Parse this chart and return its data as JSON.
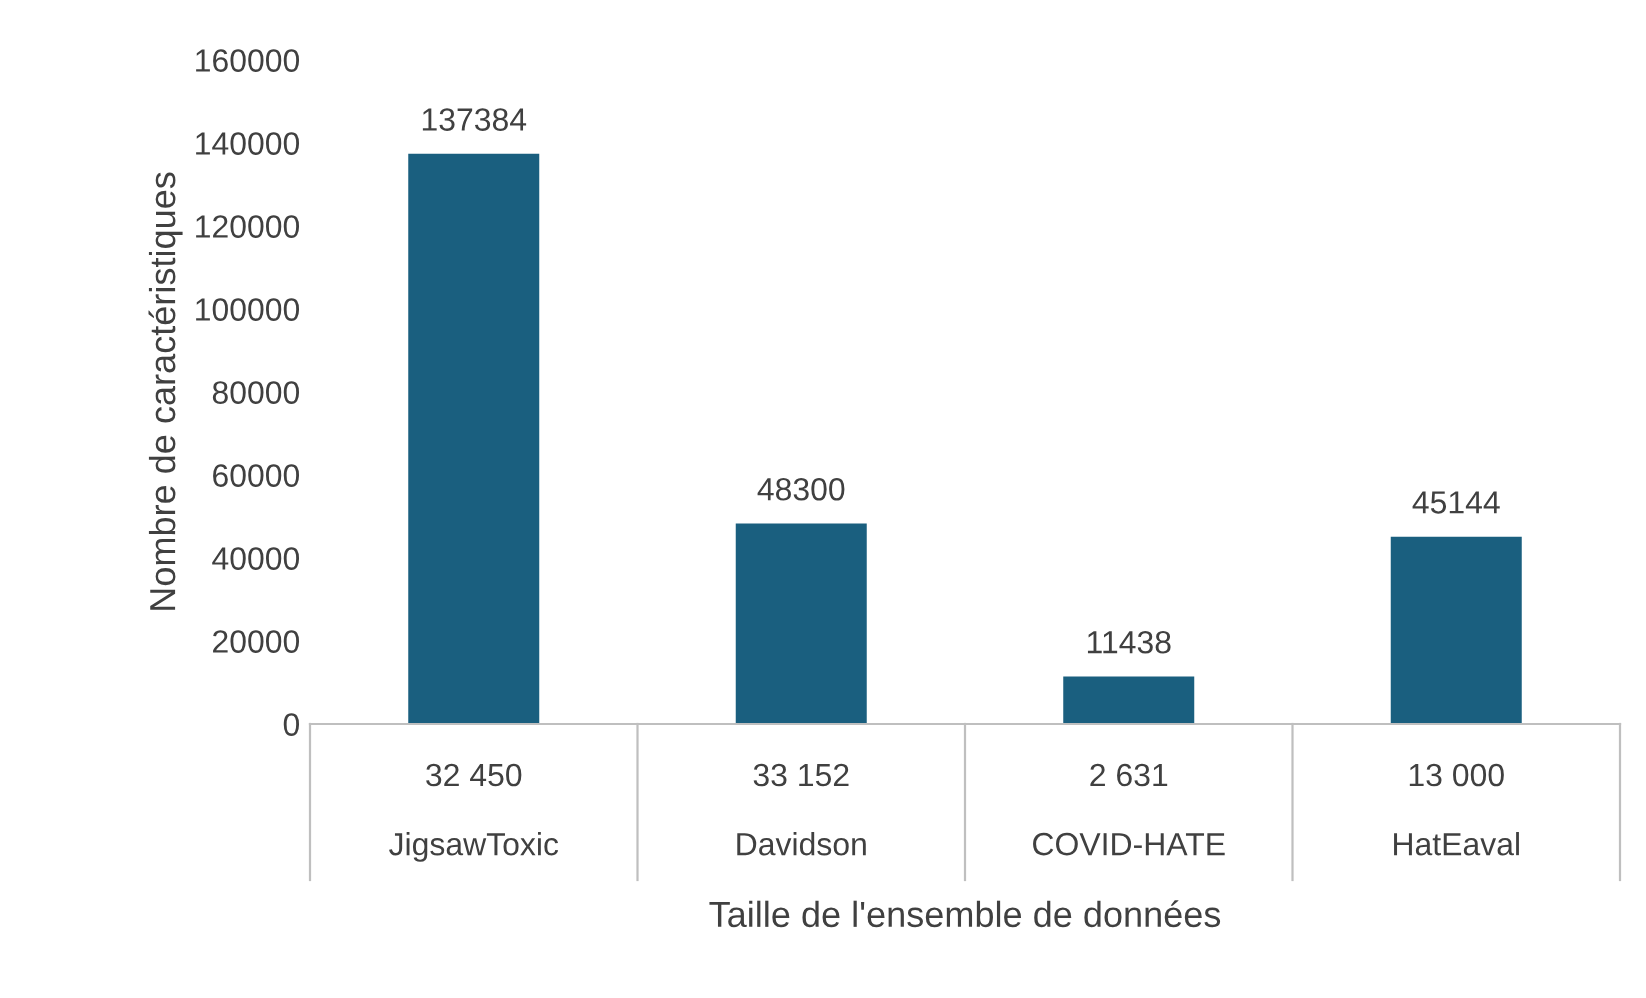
{
  "chart_data": {
    "type": "bar",
    "xlabel": "Taille de l'ensemble de données",
    "ylabel": "Nombre de caractéristiques",
    "categories": [
      "32 450\nJigsawToxic",
      "33 152\nDavidson",
      "2 631\nCOVID-HATE",
      "13 000\nHatEaval"
    ],
    "values": [
      137384,
      48300,
      11438,
      45144
    ],
    "color": "#1a5f7f",
    "ylim": [
      0,
      160000
    ],
    "yticks": [
      0,
      20000,
      40000,
      60000,
      80000,
      100000,
      120000,
      140000,
      160000
    ],
    "data_labels": true,
    "grid": false,
    "legend": false
  }
}
